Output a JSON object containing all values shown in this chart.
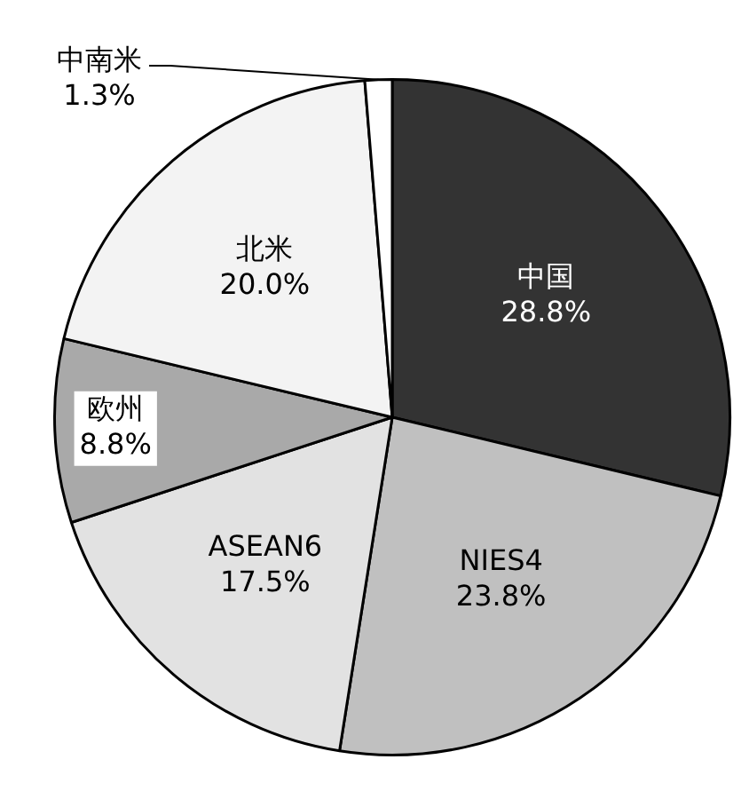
{
  "chart_data": {
    "type": "pie",
    "categories": [
      "中国",
      "NIES4",
      "ASEAN6",
      "欧州",
      "北米",
      "中南米"
    ],
    "values": [
      28.8,
      23.8,
      17.5,
      8.8,
      20.0,
      1.3
    ],
    "value_labels": [
      "28.8%",
      "23.8%",
      "17.5%",
      "8.8%",
      "20.0%",
      "1.3%"
    ],
    "colors": [
      "#333333",
      "#c0c0c0",
      "#e2e2e2",
      "#a9a9a9",
      "#f3f3f3",
      "#ffffff"
    ],
    "legend": false
  }
}
